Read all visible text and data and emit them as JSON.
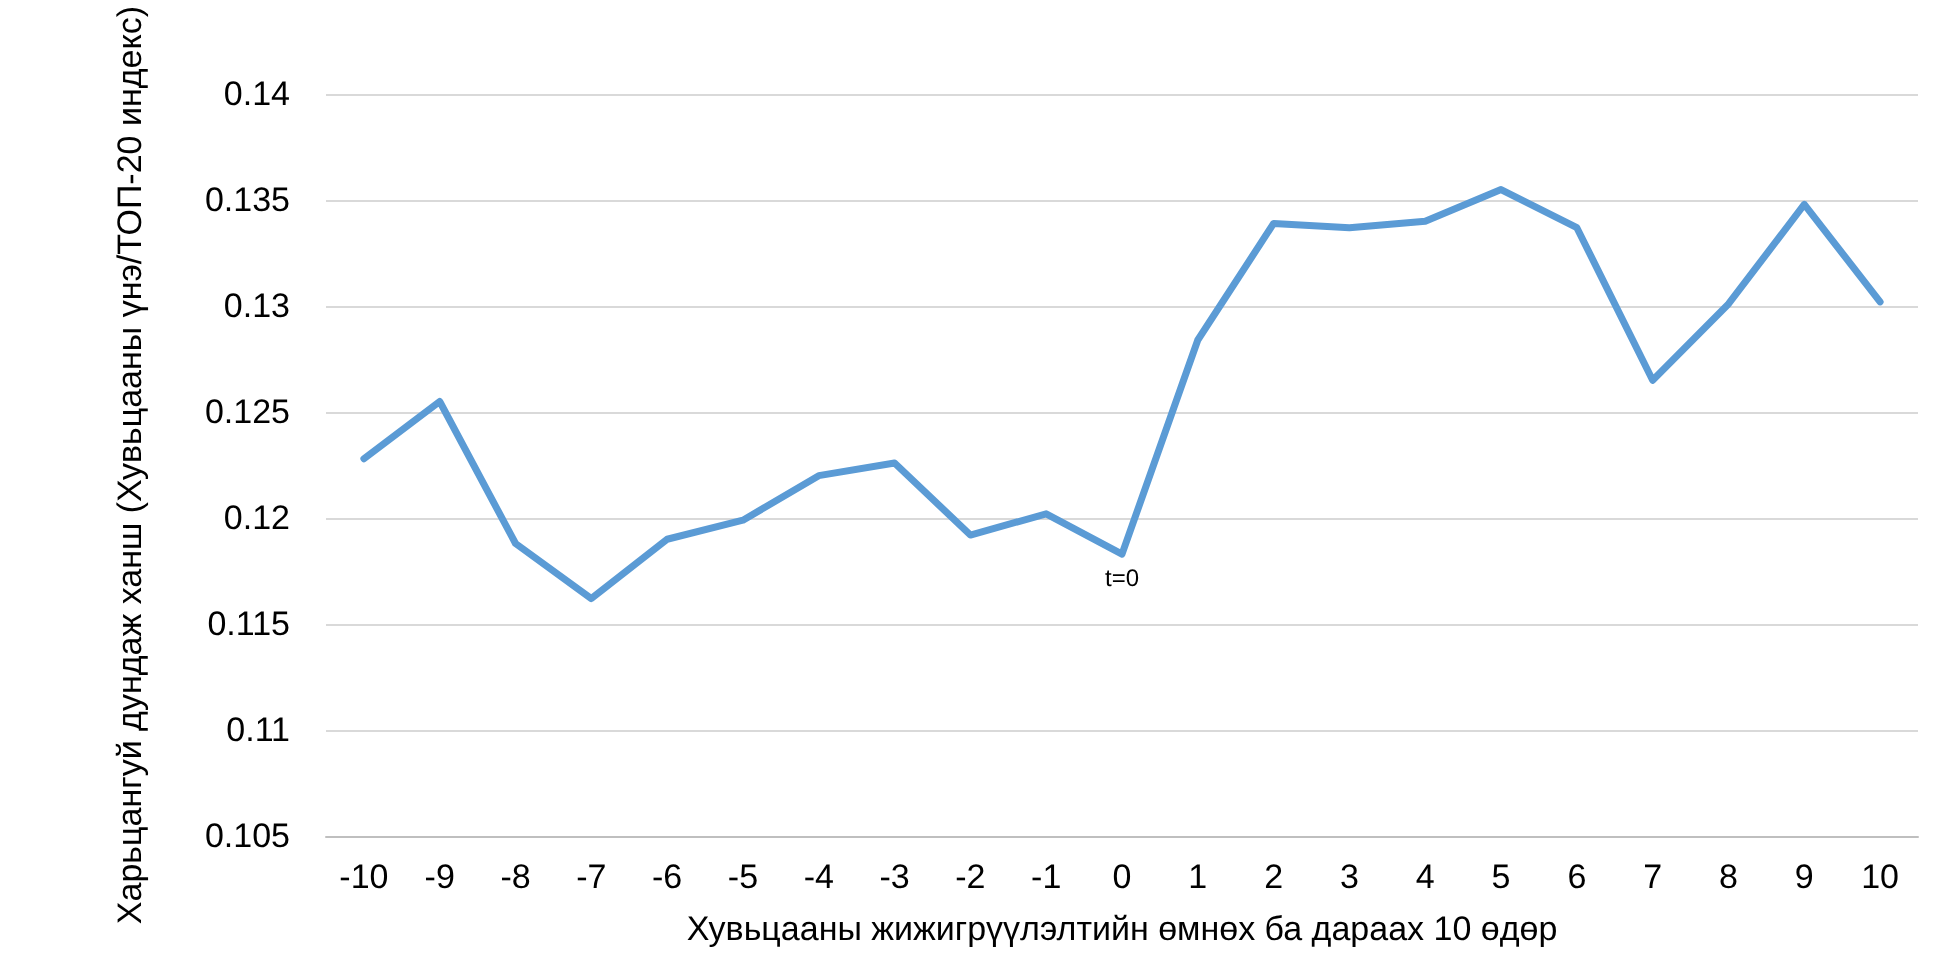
{
  "chart_data": {
    "type": "line",
    "xlabel": "Хувьцааны жижигрүүлэлтийн өмнөх ба дараах 10 өдөр",
    "ylabel": "Харьцангуй дундаж ханш (Хувьцааны үнэ/ТОП-20 индекс)",
    "categories": [
      "-10",
      "-9",
      "-8",
      "-7",
      "-6",
      "-5",
      "-4",
      "-3",
      "-2",
      "-1",
      "0",
      "1",
      "2",
      "3",
      "4",
      "5",
      "6",
      "7",
      "8",
      "9",
      "10"
    ],
    "series": [
      {
        "color": "#5b9bd5",
        "values": [
          0.1228,
          0.1255,
          0.1188,
          0.1162,
          0.119,
          0.1199,
          0.122,
          0.1226,
          0.1192,
          0.1202,
          0.1183,
          0.1284,
          0.1339,
          0.1337,
          0.134,
          0.1355,
          0.1337,
          0.1265,
          0.1301,
          0.1348,
          0.1302
        ]
      }
    ],
    "ylim": [
      0.105,
      0.14
    ],
    "yticks": [
      0.105,
      0.11,
      0.115,
      0.12,
      0.125,
      0.13,
      0.135,
      0.14
    ],
    "annotations": [
      {
        "text": "t=0",
        "x": "0",
        "y": 0.1183
      }
    ],
    "grid": "y",
    "marker": "none",
    "line_style": "solid"
  }
}
